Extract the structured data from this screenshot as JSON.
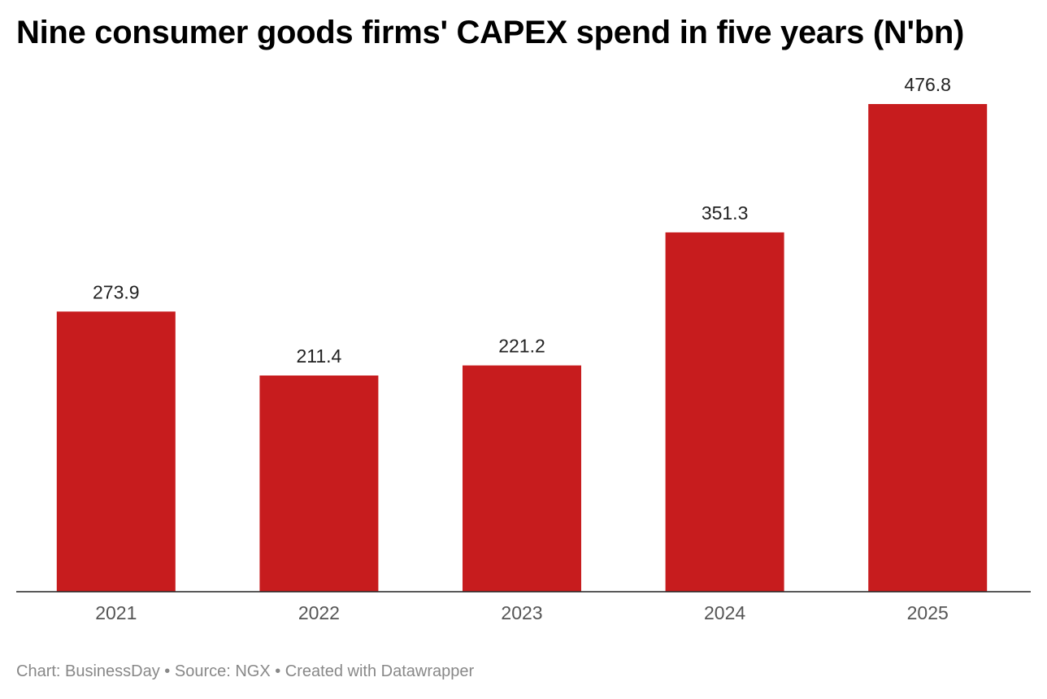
{
  "chart_data": {
    "type": "bar",
    "title": "Nine consumer goods firms' CAPEX spend in five years (N'bn)",
    "categories": [
      "2021",
      "2022",
      "2023",
      "2024",
      "2025"
    ],
    "values": [
      273.9,
      211.4,
      221.2,
      351.3,
      476.8
    ],
    "value_labels": [
      "273.9",
      "211.4",
      "221.2",
      "351.3",
      "476.8"
    ],
    "xlabel": "",
    "ylabel": "",
    "ylim": [
      0,
      476.8
    ],
    "grid": false,
    "bar_color": "#c71c1e",
    "axis_color": "#222222"
  },
  "footer": {
    "text": "Chart: BusinessDay • Source: NGX • Created with Datawrapper"
  }
}
